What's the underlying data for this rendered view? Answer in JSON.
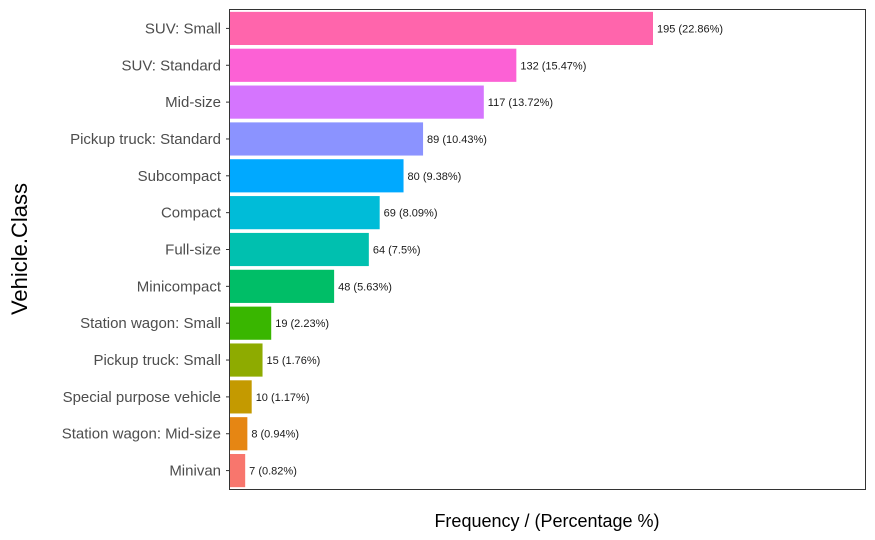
{
  "chart_data": {
    "type": "bar",
    "orientation": "horizontal",
    "xlabel": "Frequency / (Percentage %)",
    "ylabel": "Vehicle.Class",
    "grid": false,
    "categories": [
      "SUV: Small",
      "SUV: Standard",
      "Mid-size",
      "Pickup truck: Standard",
      "Subcompact",
      "Compact",
      "Full-size",
      "Minicompact",
      "Station wagon: Small",
      "Pickup truck: Small",
      "Special purpose vehicle",
      "Station wagon: Mid-size",
      "Minivan"
    ],
    "values": [
      195,
      132,
      117,
      89,
      80,
      69,
      64,
      48,
      19,
      15,
      10,
      8,
      7
    ],
    "data_labels": [
      "195 (22.86%)",
      "132 (15.47%)",
      "117 (13.72%)",
      "89 (10.43%)",
      "80 (9.38%)",
      "69 (8.09%)",
      "64 (7.5%)",
      "48 (5.63%)",
      "19 (2.23%)",
      "15 (1.76%)",
      "10 (1.17%)",
      "8 (0.94%)",
      "7 (0.82%)"
    ],
    "colors": [
      "#FF65AC",
      "#FC61D5",
      "#D575FE",
      "#8B93FF",
      "#00A9FF",
      "#00BCD8",
      "#00C0AF",
      "#00BE67",
      "#39B600",
      "#8EAB00",
      "#C49A00",
      "#E68613",
      "#F8766D"
    ]
  }
}
